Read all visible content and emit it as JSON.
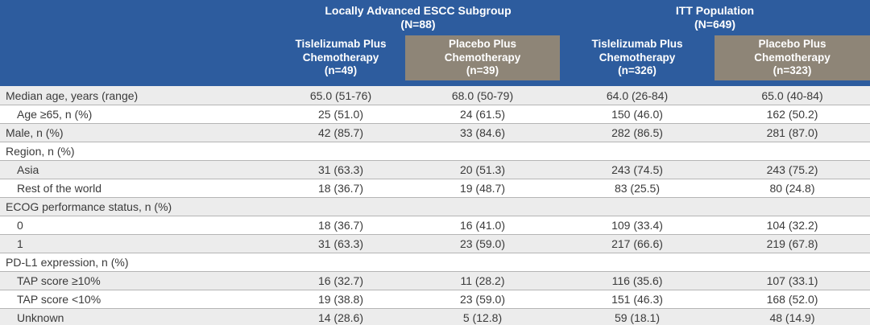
{
  "table": {
    "banner_groups": [
      {
        "title": "Locally Advanced ESCC Subgroup",
        "n": "(N=88)"
      },
      {
        "title": "ITT Population",
        "n": "(N=649)"
      }
    ],
    "columns": [
      {
        "line1": "Tislelizumab Plus",
        "line2": "Chemotherapy",
        "n": "(n=49)"
      },
      {
        "line1": "Placebo Plus",
        "line2": "Chemotherapy",
        "n": "(n=39)"
      },
      {
        "line1": "Tislelizumab Plus",
        "line2": "Chemotherapy",
        "n": "(n=326)"
      },
      {
        "line1": "Placebo Plus",
        "line2": "Chemotherapy",
        "n": "(n=323)"
      }
    ],
    "rows": [
      {
        "label": "Median age, years (range)",
        "values": [
          "65.0 (51-76)",
          "68.0 (50-79)",
          "64.0 (26-84)",
          "65.0 (40-84)"
        ]
      },
      {
        "label": "Age ≥65, n (%)",
        "values": [
          "25 (51.0)",
          "24 (61.5)",
          "150 (46.0)",
          "162 (50.2)"
        ]
      },
      {
        "label": "Male, n (%)",
        "values": [
          "42 (85.7)",
          "33 (84.6)",
          "282 (86.5)",
          "281 (87.0)"
        ]
      },
      {
        "label": "Region, n (%)",
        "values": [
          "",
          "",
          "",
          ""
        ]
      },
      {
        "label": "Asia",
        "values": [
          "31 (63.3)",
          "20 (51.3)",
          "243 (74.5)",
          "243 (75.2)"
        ]
      },
      {
        "label": "Rest of the world",
        "values": [
          "18 (36.7)",
          "19 (48.7)",
          "83 (25.5)",
          "80 (24.8)"
        ]
      },
      {
        "label": "ECOG performance status, n (%)",
        "values": [
          "",
          "",
          "",
          ""
        ]
      },
      {
        "label": "0",
        "values": [
          "18 (36.7)",
          "16 (41.0)",
          "109 (33.4)",
          "104 (32.2)"
        ]
      },
      {
        "label": "1",
        "values": [
          "31 (63.3)",
          "23 (59.0)",
          "217 (66.6)",
          "219 (67.8)"
        ]
      },
      {
        "label": "PD-L1 expression, n (%)",
        "values": [
          "",
          "",
          "",
          ""
        ]
      },
      {
        "label": "TAP score ≥10%",
        "values": [
          "16 (32.7)",
          "11 (28.2)",
          "116 (35.6)",
          "107 (33.1)"
        ]
      },
      {
        "label": "TAP score <10%",
        "values": [
          "19 (38.8)",
          "23 (59.0)",
          "151 (46.3)",
          "168 (52.0)"
        ]
      },
      {
        "label": "Unknown",
        "values": [
          "14 (28.6)",
          "5 (12.8)",
          "59 (18.1)",
          "48 (14.9)"
        ]
      }
    ],
    "colors": {
      "header_blue": "#2D5C9E",
      "header_gray": "#8E8577",
      "row_stripe": "#ECECEC",
      "body_text": "#3A3A3A"
    }
  }
}
